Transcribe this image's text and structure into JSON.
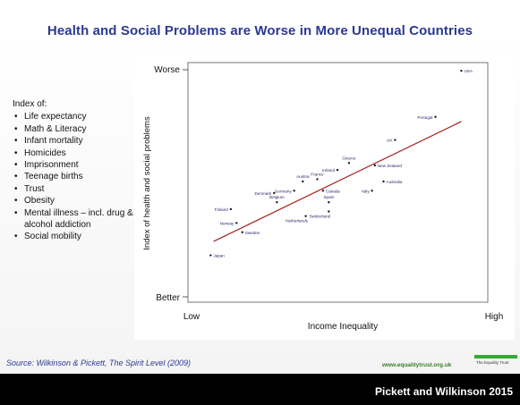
{
  "title": "Health and Social Problems are Worse in More Unequal Countries",
  "index_panel": {
    "heading": "Index of:",
    "items": [
      "Life expectancy",
      "Math & Literacy",
      "Infant mortality",
      "Homicides",
      "Imprisonment",
      "Teenage births",
      "Trust",
      "Obesity",
      "Mental illness – incl. drug & alcohol addiction",
      "Social mobility"
    ]
  },
  "chart_data": {
    "type": "scatter",
    "xlabel": "Income Inequality",
    "ylabel": "Index of health and social problems",
    "x_tick_labels": [
      "Low",
      "High"
    ],
    "y_tick_labels": [
      "Better",
      "Worse"
    ],
    "xlim": [
      0,
      100
    ],
    "ylim": [
      0,
      100
    ],
    "grid": false,
    "trend_line": {
      "x": [
        7,
        93
      ],
      "y": [
        24,
        76
      ]
    },
    "points": [
      {
        "label": "USA",
        "x": 93,
        "y": 98
      },
      {
        "label": "Portugal",
        "x": 84,
        "y": 78
      },
      {
        "label": "UK",
        "x": 70,
        "y": 68
      },
      {
        "label": "New Zealand",
        "x": 63,
        "y": 57
      },
      {
        "label": "Greece",
        "x": 54,
        "y": 58
      },
      {
        "label": "Ireland",
        "x": 50,
        "y": 55
      },
      {
        "label": "Australia",
        "x": 66,
        "y": 50
      },
      {
        "label": "France",
        "x": 43,
        "y": 51
      },
      {
        "label": "Austria",
        "x": 38,
        "y": 50
      },
      {
        "label": "Germany",
        "x": 35,
        "y": 46
      },
      {
        "label": "Canada",
        "x": 45,
        "y": 46
      },
      {
        "label": "Italy",
        "x": 62,
        "y": 46
      },
      {
        "label": "Denmark",
        "x": 28,
        "y": 45
      },
      {
        "label": "Belgium",
        "x": 29,
        "y": 41
      },
      {
        "label": "Spain",
        "x": 47,
        "y": 41
      },
      {
        "label": "Switzerland",
        "x": 47,
        "y": 37
      },
      {
        "label": "Finland",
        "x": 13,
        "y": 38
      },
      {
        "label": "Netherlands",
        "x": 39,
        "y": 35
      },
      {
        "label": "Norway",
        "x": 15,
        "y": 32
      },
      {
        "label": "Sweden",
        "x": 17,
        "y": 28
      },
      {
        "label": "Japan",
        "x": 6,
        "y": 18
      }
    ]
  },
  "source": {
    "prefix": "Source: Wilkinson & Pickett, ",
    "book": "The Spirit Level",
    "suffix": " (2009)"
  },
  "website": "www.equalitytrust.org.uk",
  "logo_text": "The Equality Trust",
  "caption": "Pickett and Wilkinson 2015",
  "colors": {
    "title": "#2b3990",
    "trend_line": "#a52a2a",
    "plot_border": "#555555",
    "caption_bar": "#000000"
  }
}
